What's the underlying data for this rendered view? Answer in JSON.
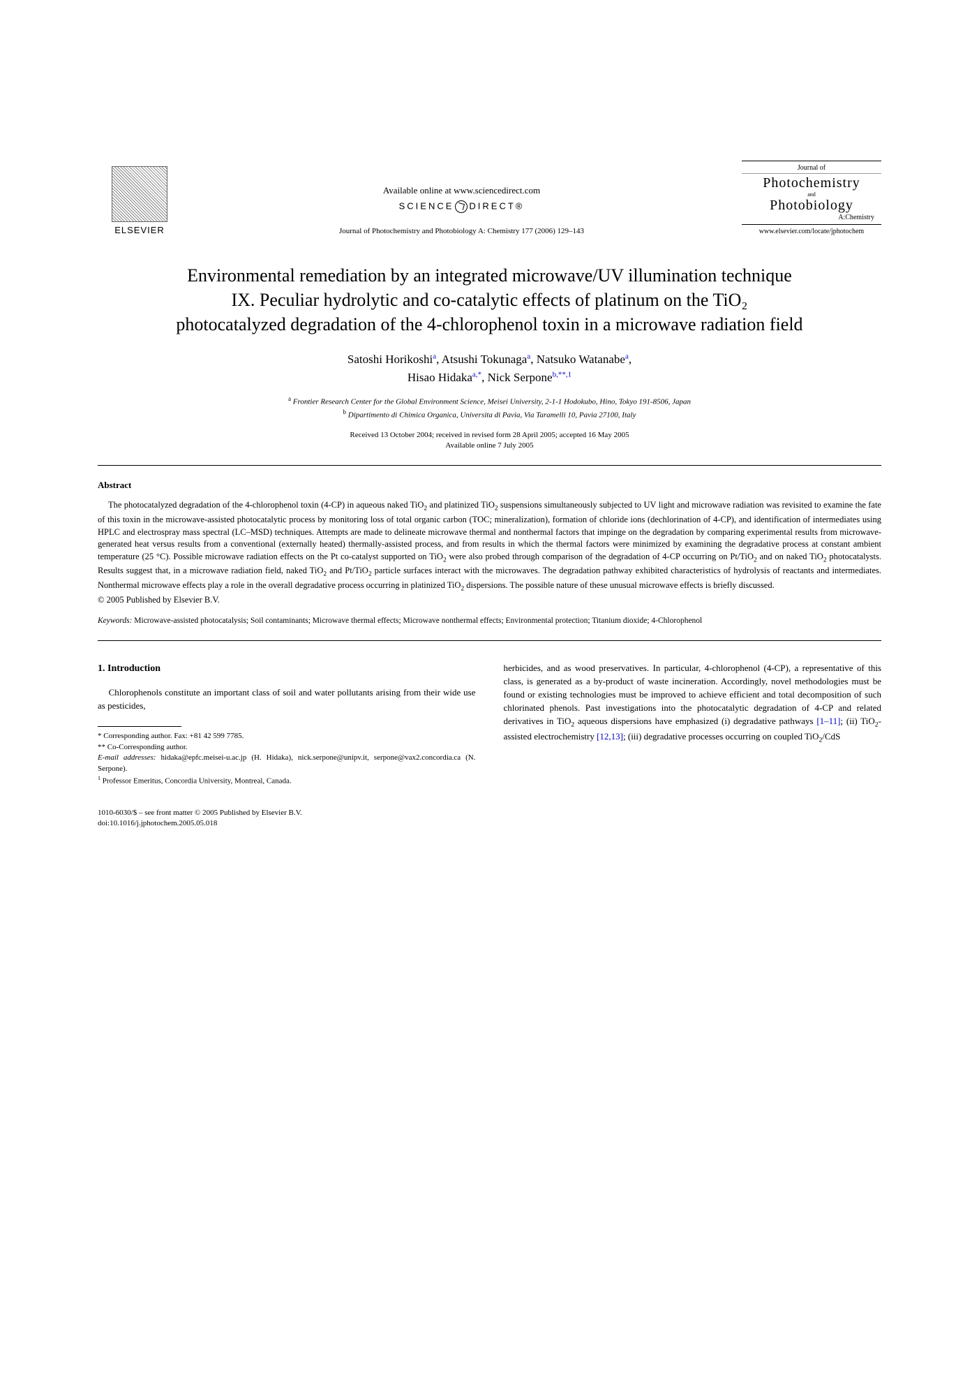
{
  "header": {
    "elsevier": "ELSEVIER",
    "available_online": "Available online at www.sciencedirect.com",
    "sciencedirect_left": "SCIENCE",
    "sciencedirect_right": "DIRECT®",
    "citation": "Journal of Photochemistry and Photobiology A: Chemistry 177 (2006) 129–143",
    "journal_box": {
      "journal_of": "Journal of",
      "photochemistry": "Photochemistry",
      "and": "and",
      "photobiology": "Photobiology",
      "achemistry": "A:Chemistry"
    },
    "journal_url": "www.elsevier.com/locate/jphotochem"
  },
  "title": "Environmental remediation by an integrated microwave/UV illumination technique",
  "subtitle": "IX. Peculiar hydrolytic and co-catalytic effects of platinum on the TiO₂ photocatalyzed degradation of the 4-chlorophenol toxin in a microwave radiation field",
  "authors_line1_html": "Satoshi Horikoshi<sup>a</sup>, Atsushi Tokunaga<sup>a</sup>, Natsuko Watanabe<sup>a</sup>,",
  "authors_line2_html": "Hisao Hidaka<sup>a,*</sup>, Nick Serpone<sup>b,**,1</sup>",
  "affiliation_a_html": "<sup>a</sup> Frontier Research Center for the Global Environment Science, Meisei University, 2-1-1 Hodokubo, Hino, Tokyo 191-8506, Japan",
  "affiliation_b_html": "<sup>b</sup> Dipartimento di Chimica Organica, Universita di Pavia, Via Taramelli 10, Pavia 27100, Italy",
  "dates_line1": "Received 13 October 2004; received in revised form 28 April 2005; accepted 16 May 2005",
  "dates_line2": "Available online 7 July 2005",
  "abstract_heading": "Abstract",
  "abstract_body_html": "The photocatalyzed degradation of the 4-chlorophenol toxin (4-CP) in aqueous naked TiO<sub>2</sub> and platinized TiO<sub>2</sub> suspensions simultaneously subjected to UV light and microwave radiation was revisited to examine the fate of this toxin in the microwave-assisted photocatalytic process by monitoring loss of total organic carbon (TOC; mineralization), formation of chloride ions (dechlorination of 4-CP), and identification of intermediates using HPLC and electrospray mass spectral (LC–MSD) techniques. Attempts are made to delineate microwave thermal and nonthermal factors that impinge on the degradation by comparing experimental results from microwave-generated heat versus results from a conventional (externally heated) thermally-assisted process, and from results in which the thermal factors were minimized by examining the degradative process at constant ambient temperature (25 °C). Possible microwave radiation effects on the Pt co-catalyst supported on TiO<sub>2</sub> were also probed through comparison of the degradation of 4-CP occurring on Pt/TiO<sub>2</sub> and on naked TiO<sub>2</sub> photocatalysts. Results suggest that, in a microwave radiation field, naked TiO<sub>2</sub> and Pt/TiO<sub>2</sub> particle surfaces interact with the microwaves. The degradation pathway exhibited characteristics of hydrolysis of reactants and intermediates. Nonthermal microwave effects play a role in the overall degradative process occurring in platinized TiO<sub>2</sub> dispersions. The possible nature of these unusual microwave effects is briefly discussed.",
  "copyright": "© 2005 Published by Elsevier B.V.",
  "keywords_label": "Keywords:",
  "keywords_text": "Microwave-assisted photocatalysis; Soil contaminants; Microwave thermal effects; Microwave nonthermal effects; Environmental protection; Titanium dioxide; 4-Chlorophenol",
  "section1_heading": "1. Introduction",
  "col_left_para": "Chlorophenols constitute an important class of soil and water pollutants arising from their wide use as pesticides,",
  "col_right_para_html": "herbicides, and as wood preservatives. In particular, 4-chlorophenol (4-CP), a representative of this class, is generated as a by-product of waste incineration. Accordingly, novel methodologies must be found or existing technologies must be improved to achieve efficient and total decomposition of such chlorinated phenols. Past investigations into the photocatalytic degradation of 4-CP and related derivatives in TiO<sub>2</sub> aqueous dispersions have emphasized (i) degradative pathways <span class=\"ref-link\">[1–11]</span>; (ii) TiO<sub>2</sub>-assisted electrochemistry <span class=\"ref-link\">[12,13]</span>; (iii) degradative processes occurring on coupled TiO<sub>2</sub>/CdS",
  "footnotes": {
    "corr1": "* Corresponding author. Fax: +81 42 599 7785.",
    "corr2": "** Co-Corresponding author.",
    "email_label": "E-mail addresses:",
    "email_text": " hidaka@epfc.meisei-u.ac.jp (H. Hidaka), nick.serpone@unipv.it, serpone@vax2.concordia.ca (N. Serpone).",
    "note1_html": "<sup>1</sup> Professor Emeritus, Concordia University, Montreal, Canada."
  },
  "footer": {
    "line1": "1010-6030/$ – see front matter © 2005 Published by Elsevier B.V.",
    "line2": "doi:10.1016/j.jphotochem.2005.05.018"
  },
  "colors": {
    "link": "#0000cc",
    "text": "#000000",
    "bg": "#ffffff"
  }
}
